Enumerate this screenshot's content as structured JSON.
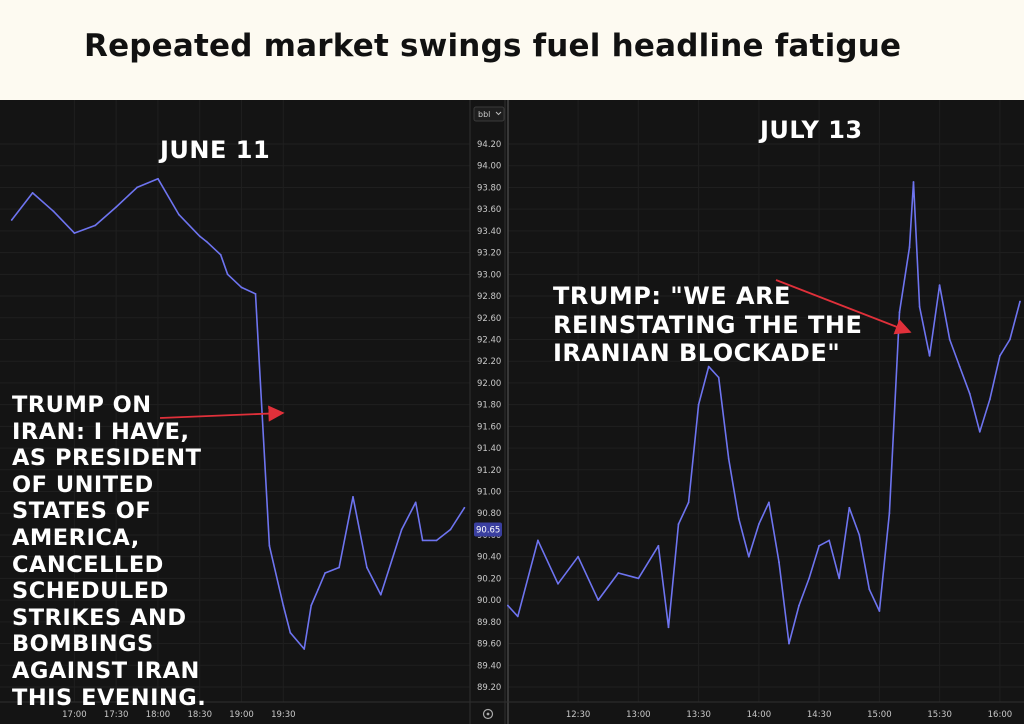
{
  "headline": "Repeated market swings fuel headline fatigue",
  "unit_button": {
    "label": "bbl",
    "icon": "chevron-down-icon"
  },
  "price_tag": "90.65",
  "settings_icon": "gear-icon",
  "colors": {
    "line": "#6e74f0",
    "arrow": "#e0303a",
    "price_tag_bg": "#3a3fa0",
    "background": "#141414"
  },
  "chart_data": [
    {
      "type": "line",
      "panel": "left",
      "date_label": "JUNE 11",
      "annotation": [
        "TRUMP ON",
        "IRAN: I HAVE,",
        "AS PRESIDENT",
        "OF UNITED",
        "STATES OF",
        "AMERICA,",
        "CANCELLED",
        "SCHEDULED",
        "STRIKES AND",
        "BOMBINGS",
        "AGAINST IRAN",
        "THIS EVENING."
      ],
      "x_ticks": [
        "17:00",
        "17:30",
        "18:00",
        "18:30",
        "19:00",
        "19:30"
      ],
      "x_minutes": [
        975,
        990,
        1005,
        1020,
        1035,
        1050,
        1065,
        1080,
        1095,
        1110,
        1115,
        1125,
        1130,
        1140,
        1150,
        1160,
        1170,
        1175,
        1185,
        1190,
        1195,
        1200,
        1210,
        1220,
        1230,
        1240,
        1255,
        1265,
        1270,
        1280,
        1290,
        1300
      ],
      "series": [
        {
          "values": [
            93.5,
            93.75,
            93.58,
            93.38,
            93.45,
            93.62,
            93.8,
            93.88,
            93.55,
            93.35,
            93.3,
            93.18,
            93.0,
            92.88,
            92.82,
            90.5,
            89.95,
            89.7,
            89.55,
            89.95,
            90.1,
            90.25,
            90.3,
            90.95,
            90.3,
            90.05,
            90.65,
            90.9,
            90.55,
            90.55,
            90.65,
            90.85
          ]
        }
      ]
    },
    {
      "type": "line",
      "panel": "right",
      "date_label": "JULY 13",
      "annotation": [
        "TRUMP: \"WE ARE",
        "REINSTATING THE THE",
        "IRANIAN BLOCKADE\""
      ],
      "x_ticks": [
        "12:30",
        "13:00",
        "13:30",
        "14:00",
        "14:30",
        "15:00",
        "15:30",
        "16:00"
      ],
      "x_minutes": [
        715,
        720,
        730,
        740,
        750,
        760,
        770,
        780,
        790,
        795,
        800,
        805,
        810,
        815,
        820,
        825,
        830,
        835,
        840,
        845,
        850,
        855,
        860,
        865,
        870,
        875,
        880,
        885,
        890,
        895,
        900,
        905,
        910,
        915,
        917,
        920,
        925,
        930,
        935,
        940,
        945,
        950,
        955,
        960,
        965,
        970
      ],
      "series": [
        {
          "values": [
            89.95,
            89.85,
            90.55,
            90.15,
            90.4,
            90.0,
            90.25,
            90.2,
            90.5,
            89.75,
            90.7,
            90.9,
            91.8,
            92.15,
            92.05,
            91.3,
            90.75,
            90.4,
            90.7,
            90.9,
            90.35,
            89.6,
            89.95,
            90.2,
            90.5,
            90.55,
            90.2,
            90.85,
            90.6,
            90.1,
            89.9,
            90.8,
            92.65,
            93.25,
            93.85,
            92.7,
            92.25,
            92.9,
            92.4,
            92.15,
            91.9,
            91.55,
            91.85,
            92.25,
            92.4,
            92.75
          ]
        }
      ]
    }
  ],
  "y_axis": {
    "ticks": [
      "94.20",
      "94.00",
      "93.80",
      "93.60",
      "93.40",
      "93.20",
      "93.00",
      "92.80",
      "92.60",
      "92.40",
      "92.20",
      "92.00",
      "91.80",
      "91.60",
      "91.40",
      "91.20",
      "91.00",
      "90.80",
      "90.60",
      "90.40",
      "90.20",
      "90.00",
      "89.80",
      "89.60",
      "89.40",
      "89.20"
    ],
    "range": [
      89.15,
      94.3
    ]
  }
}
